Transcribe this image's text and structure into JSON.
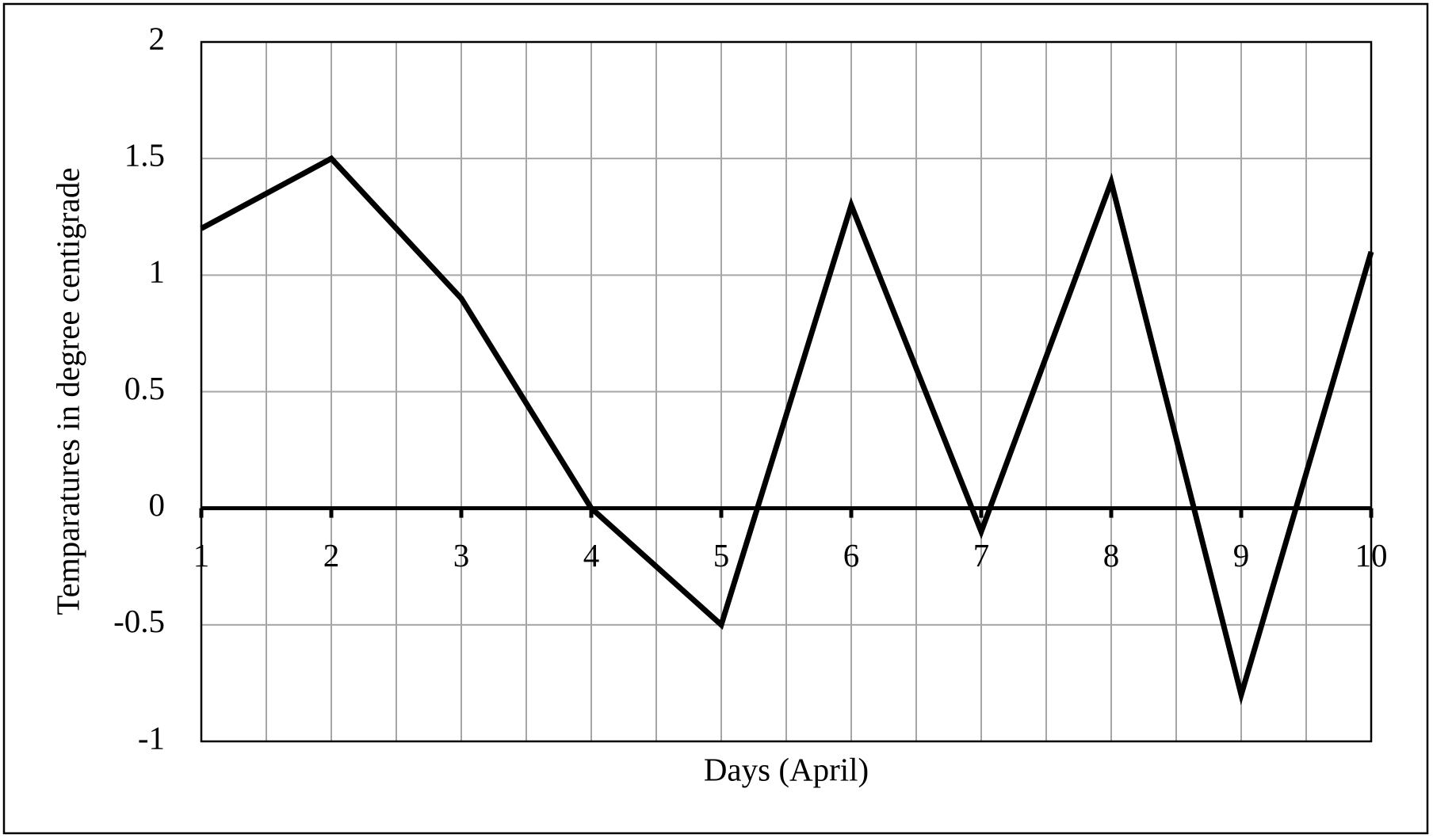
{
  "chart_data": {
    "type": "line",
    "x_label": "Days (April)",
    "y_label": "Temparatures in degree centigrade",
    "x": [
      1,
      2,
      3,
      4,
      5,
      6,
      7,
      8,
      9,
      10
    ],
    "values": [
      1.2,
      1.5,
      0.9,
      0,
      -0.5,
      1.3,
      -0.1,
      1.4,
      -0.8,
      1.1
    ],
    "color": "#000000",
    "xlim": [
      1,
      10
    ],
    "xticks": [
      1,
      2,
      3,
      4,
      5,
      6,
      7,
      8,
      9,
      10
    ],
    "ylim": [
      -1,
      2
    ],
    "yticks": [
      -1,
      -0.5,
      0,
      0.5,
      1,
      1.5,
      2
    ],
    "grid": true
  }
}
